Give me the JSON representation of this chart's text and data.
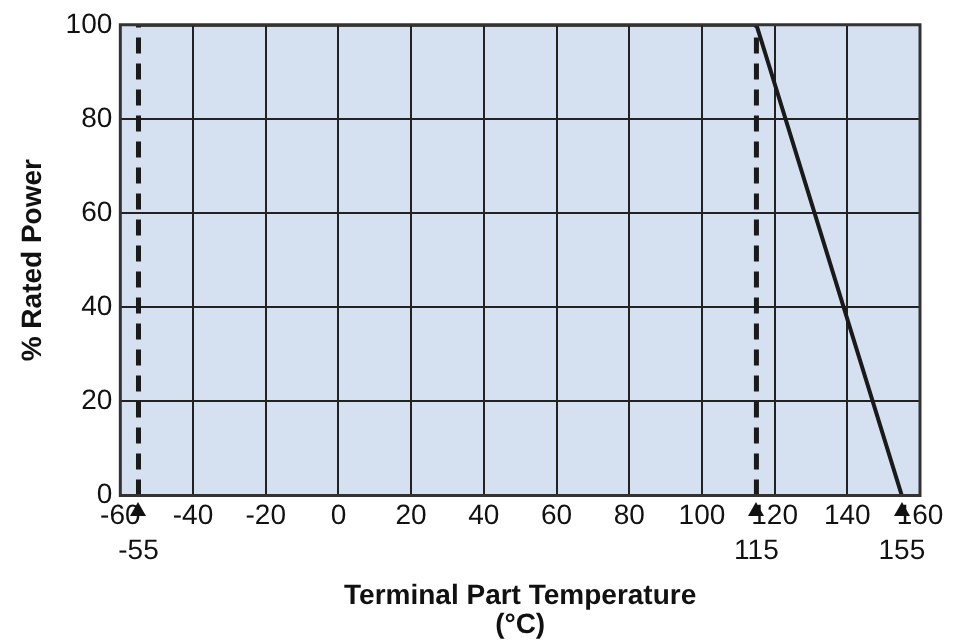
{
  "chart_data": {
    "type": "line",
    "xlabel": "Terminal Part Temperature\n(°C)",
    "ylabel": "% Rated Power",
    "x": [
      -55,
      115,
      155
    ],
    "series": [
      {
        "color": "#1a1a1a",
        "values": [
          100,
          100,
          0
        ]
      }
    ],
    "xlim": [
      -60,
      160
    ],
    "xticks": [
      -60,
      -40,
      -20,
      0,
      20,
      40,
      60,
      80,
      100,
      120,
      140,
      160
    ],
    "ylim": [
      0,
      100
    ],
    "yticks": [
      0,
      20,
      40,
      60,
      80,
      100
    ],
    "ref_lines": [
      {
        "axis": "x",
        "value": -55,
        "label": "-55",
        "line_style": "dashed",
        "color": "#1a1a1a"
      },
      {
        "axis": "x",
        "value": 115,
        "label": "115",
        "line_style": "dashed",
        "color": "#1a1a1a"
      }
    ],
    "annotations": [
      {
        "text": "155",
        "x": 155,
        "y": 0
      }
    ],
    "grid": true,
    "marker": "none",
    "line_style": "solid",
    "legend": false
  }
}
